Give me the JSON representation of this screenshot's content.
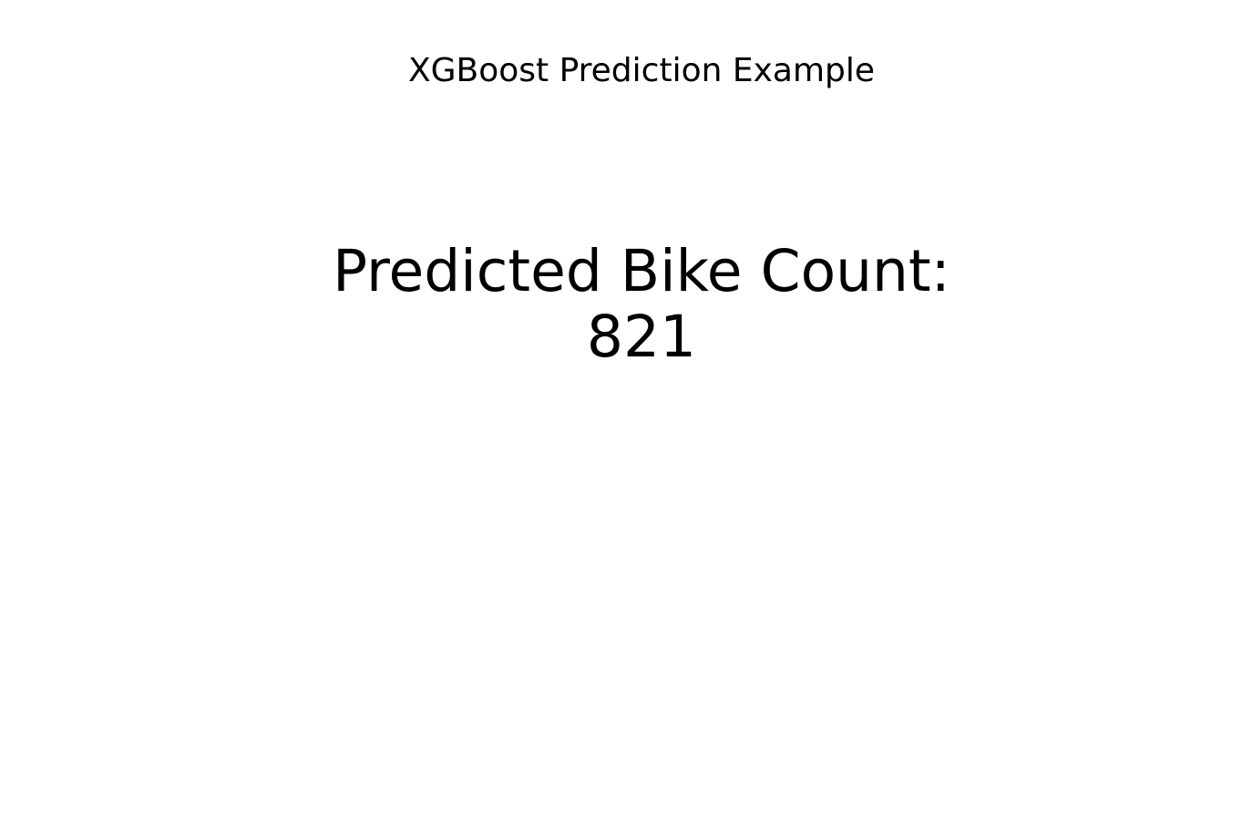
{
  "chart_data": {
    "type": "table",
    "title": "XGBoost Prediction Example",
    "annotation": {
      "label": "Predicted Bike Count:",
      "value": "821"
    },
    "axes_visible": false,
    "grid": false
  }
}
